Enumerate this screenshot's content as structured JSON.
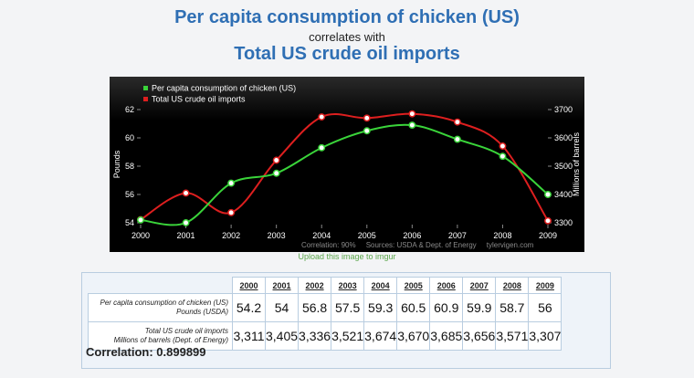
{
  "header": {
    "title_line1": "Per capita consumption of chicken (US)",
    "title_line2": "correlates with",
    "title_line3": "Total US crude oil imports"
  },
  "chart_data": {
    "type": "line",
    "x": [
      "2000",
      "2001",
      "2002",
      "2003",
      "2004",
      "2005",
      "2006",
      "2007",
      "2008",
      "2009"
    ],
    "series": [
      {
        "name": "Per capita consumption of chicken (US)",
        "axis": "left",
        "color": "#3ad43a",
        "values": [
          54.2,
          54,
          56.8,
          57.5,
          59.3,
          60.5,
          60.9,
          59.9,
          58.7,
          56
        ]
      },
      {
        "name": "Total US crude oil imports",
        "axis": "right",
        "color": "#dd1f1f",
        "values": [
          3311,
          3405,
          3336,
          3521,
          3674,
          3670,
          3685,
          3656,
          3571,
          3307
        ]
      }
    ],
    "ylabel_left": "Pounds",
    "ylabel_right": "Millions of barrels",
    "ylim_left": [
      54,
      62
    ],
    "yticks_left": [
      "54",
      "56",
      "58",
      "60",
      "62"
    ],
    "ylim_right": [
      3300,
      3700
    ],
    "yticks_right": [
      "3300",
      "3400",
      "3500",
      "3600",
      "3700"
    ],
    "legend_position": "top-left",
    "background": "#000000",
    "grid": false,
    "footnote": "Correlation: 90%     Sources: USDA & Dept. of Energy     tylervigen.com"
  },
  "upload_link": "Upload this image to imgur",
  "table": {
    "years": [
      "2000",
      "2001",
      "2002",
      "2003",
      "2004",
      "2005",
      "2006",
      "2007",
      "2008",
      "2009"
    ],
    "rows": [
      {
        "label_line1": "Per capita consumption of chicken (US)",
        "label_line2": "Pounds (USDA)",
        "values": [
          "54.2",
          "54",
          "56.8",
          "57.5",
          "59.3",
          "60.5",
          "60.9",
          "59.9",
          "58.7",
          "56"
        ]
      },
      {
        "label_line1": "Total US crude oil imports",
        "label_line2": "Millions of barrels (Dept. of Energy)",
        "values": [
          "3,311",
          "3,405",
          "3,336",
          "3,521",
          "3,674",
          "3,670",
          "3,685",
          "3,656",
          "3,571",
          "3,307"
        ]
      }
    ],
    "correlation": "Correlation: 0.899899"
  }
}
